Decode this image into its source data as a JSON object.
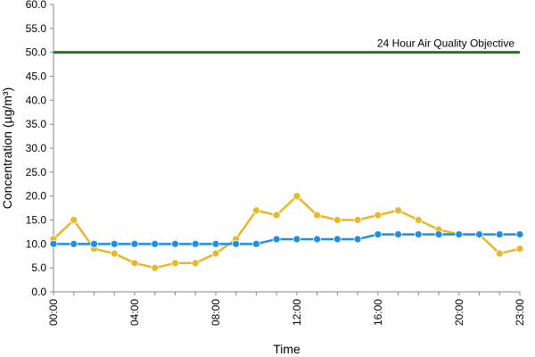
{
  "chart_data": {
    "type": "line",
    "title": "",
    "xlabel": "Time",
    "ylabel": "Concentration (µg/m³)",
    "ylim": [
      0,
      60
    ],
    "yticks": [
      "0.0",
      "5.0",
      "10.0",
      "15.0",
      "20.0",
      "25.0",
      "30.0",
      "35.0",
      "40.0",
      "45.0",
      "50.0",
      "55.0",
      "60.0"
    ],
    "xlim": [
      0,
      23
    ],
    "xticks": [
      {
        "x": 0,
        "label": "00:00"
      },
      {
        "x": 4,
        "label": "04:00"
      },
      {
        "x": 8,
        "label": "08:00"
      },
      {
        "x": 12,
        "label": "12:00"
      },
      {
        "x": 16,
        "label": "16:00"
      },
      {
        "x": 20,
        "label": "20:00"
      },
      {
        "x": 23,
        "label": "23:00"
      }
    ],
    "grid": false,
    "x": [
      0,
      1,
      2,
      3,
      4,
      5,
      6,
      7,
      8,
      9,
      10,
      11,
      12,
      13,
      14,
      15,
      16,
      17,
      18,
      19,
      20,
      21,
      22,
      23
    ],
    "series": [
      {
        "color": "#e8b828",
        "values": [
          11,
          15,
          9,
          8,
          6,
          5,
          6,
          6,
          8,
          11,
          17,
          16,
          20,
          16,
          15,
          15,
          16,
          17,
          15,
          13,
          12,
          12,
          8,
          9
        ]
      },
      {
        "color": "#1e8fe6",
        "values": [
          10,
          10,
          10,
          10,
          10,
          10,
          10,
          10,
          10,
          10,
          10,
          11,
          11,
          11,
          11,
          11,
          12,
          12,
          12,
          12,
          12,
          12,
          12,
          12
        ]
      }
    ],
    "reference_lines": [
      {
        "y": 50,
        "label": "24 Hour Air Quality Objective",
        "color": "#1e7a1e"
      }
    ]
  }
}
